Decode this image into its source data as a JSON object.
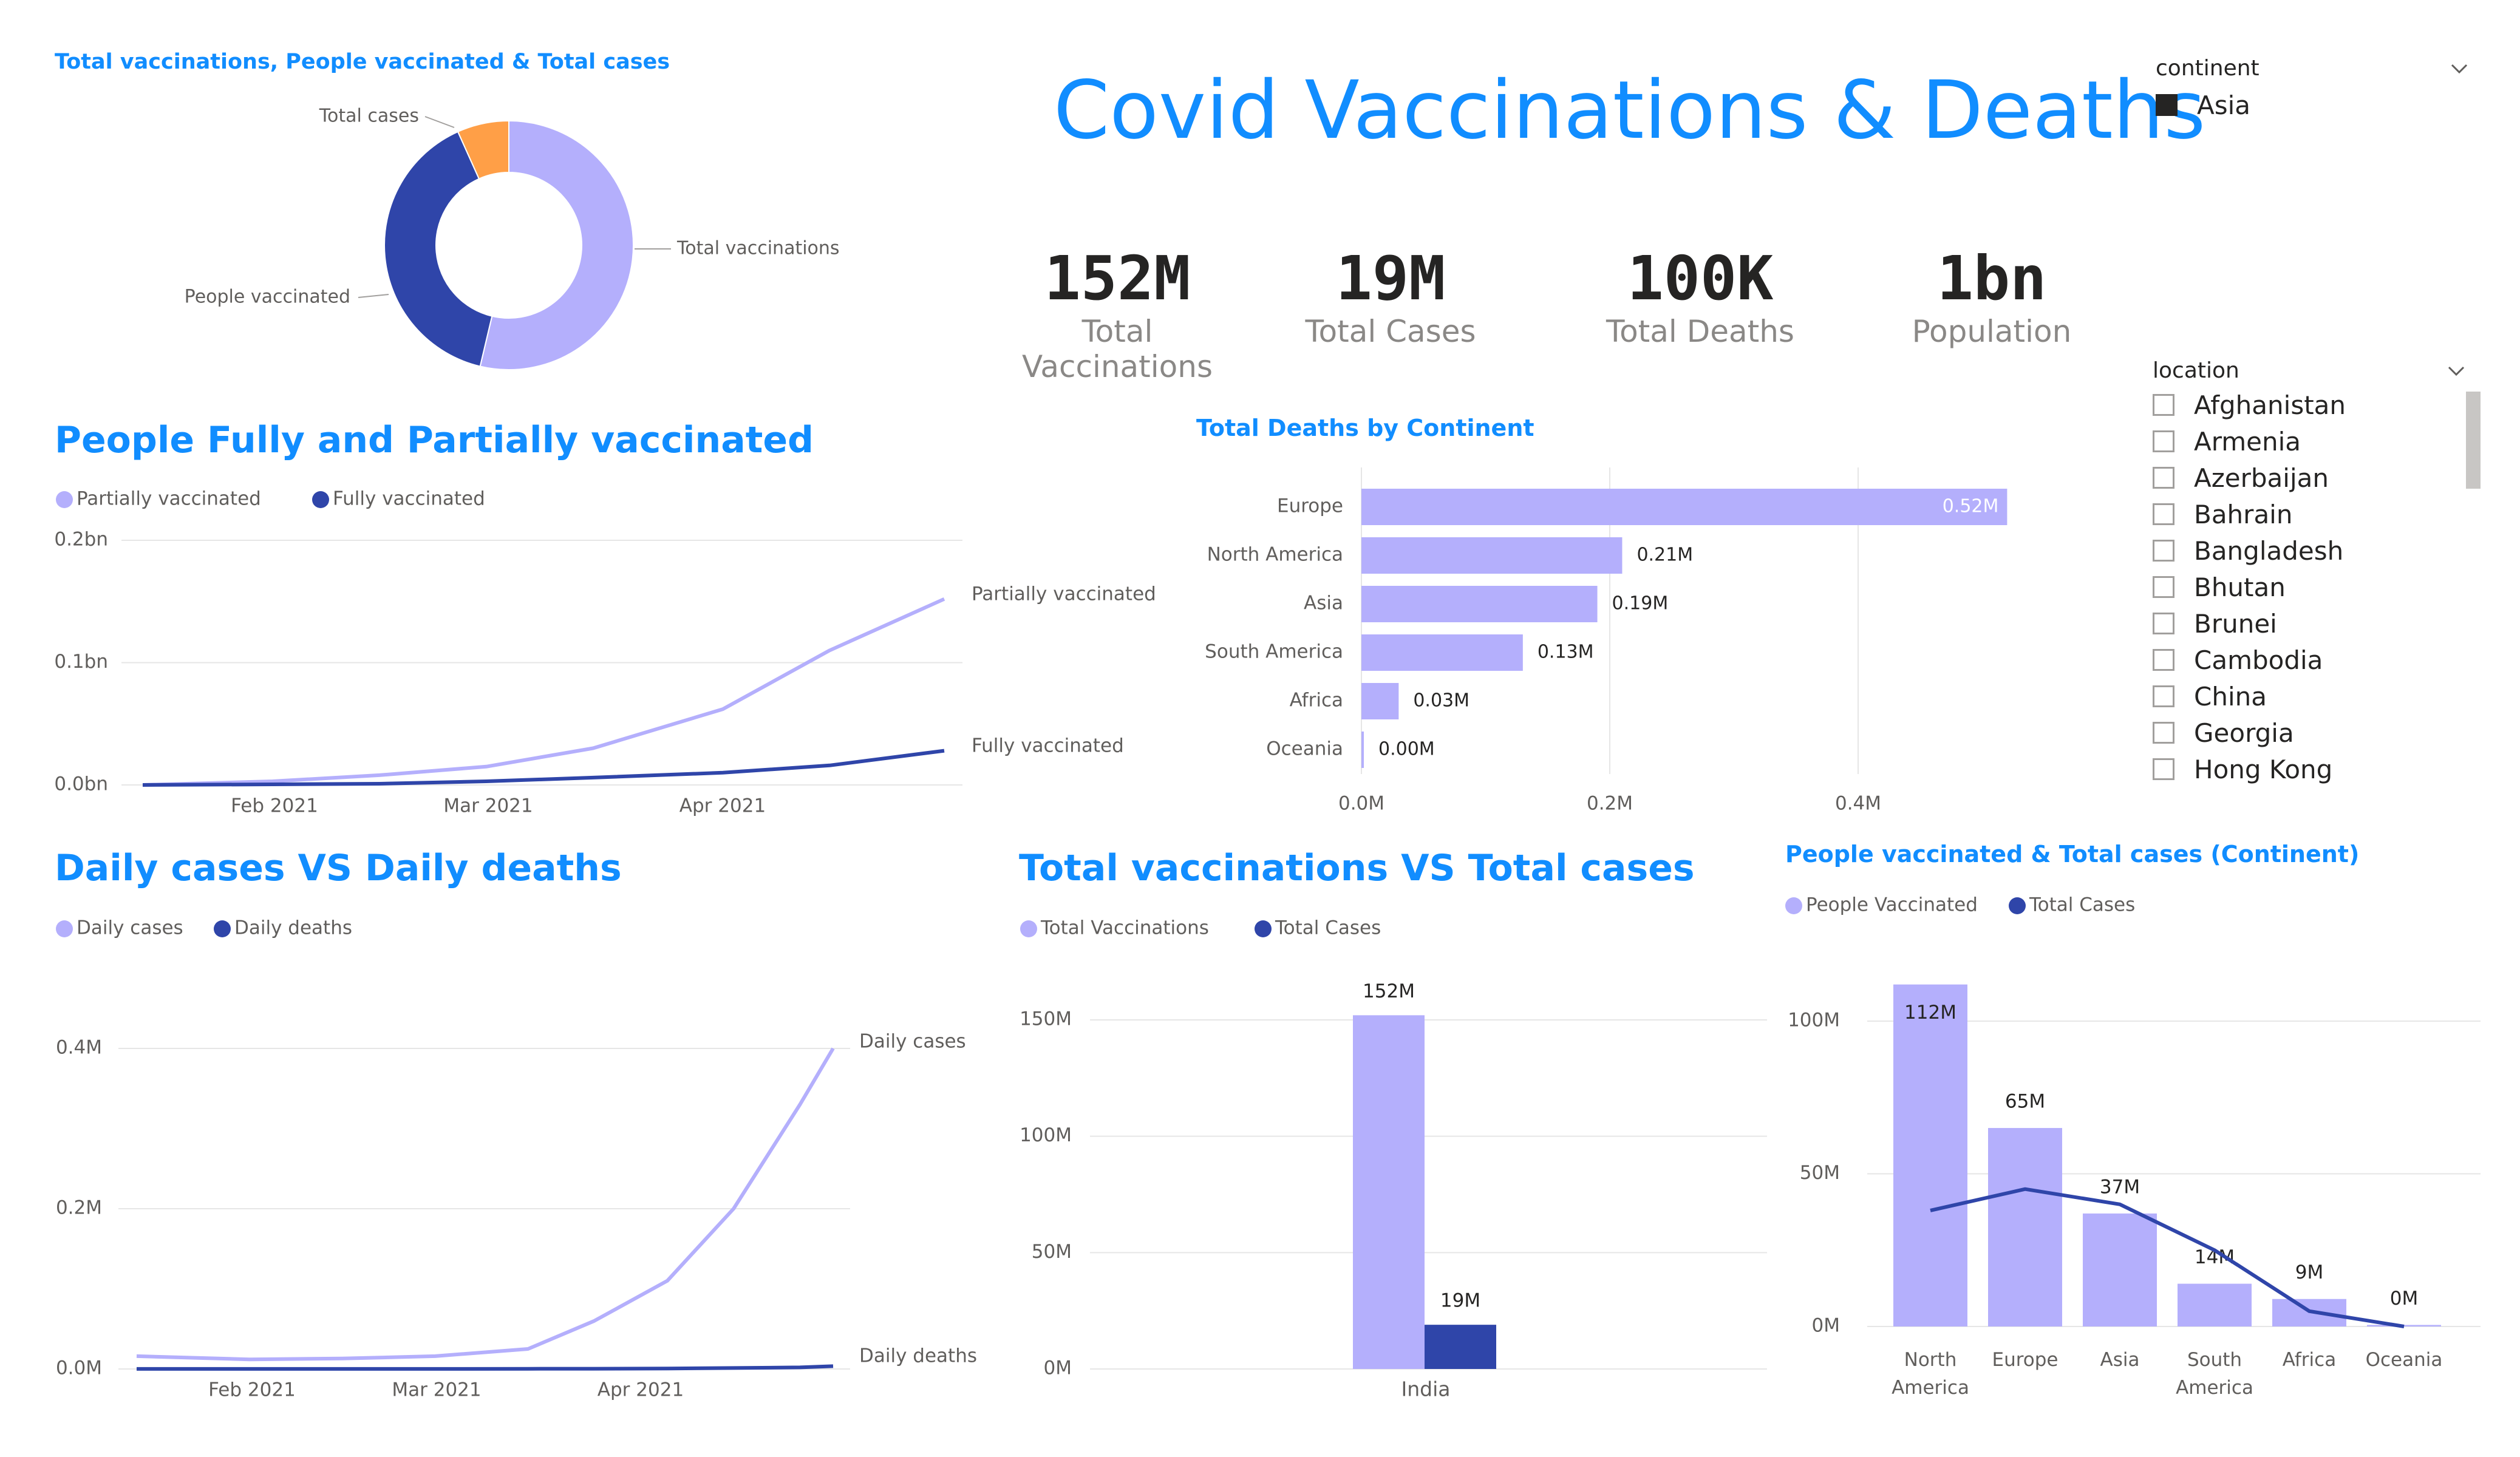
{
  "dashboard": {
    "title": "Covid Vaccinations & Deaths"
  },
  "kpis": [
    {
      "value": "152M",
      "label": "Total Vaccinations"
    },
    {
      "value": "19M",
      "label": "Total Cases"
    },
    {
      "value": "100K",
      "label": "Total Deaths"
    },
    {
      "value": "1bn",
      "label": "Population"
    }
  ],
  "slicers": {
    "continent": {
      "label": "continent",
      "selected": "Asia"
    },
    "location": {
      "label": "location",
      "items": [
        "Afghanistan",
        "Armenia",
        "Azerbaijan",
        "Bahrain",
        "Bangladesh",
        "Bhutan",
        "Brunei",
        "Cambodia",
        "China",
        "Georgia",
        "Hong Kong"
      ]
    }
  },
  "colors": {
    "accent": "#118DFF",
    "light_purple": "#B4AFFC",
    "dark_blue": "#2F45A9",
    "orange": "#FF9F47",
    "grid": "#e6e6e6",
    "text_muted": "#605e5c"
  },
  "icons": {
    "continent_dropdown": "chevron-down-icon",
    "location_dropdown": "chevron-down-icon"
  },
  "chart_data": [
    {
      "id": "donut",
      "type": "pie",
      "title": "Total vaccinations, People vaccinated & Total cases",
      "labels": [
        "Total vaccinations",
        "People vaccinated",
        "Total cases"
      ],
      "values": [
        152,
        112,
        19
      ],
      "colors": [
        "#B4AFFC",
        "#2F45A9",
        "#FF9F47"
      ]
    },
    {
      "id": "vacc_line",
      "type": "line",
      "title": "People Fully and Partially vaccinated",
      "legend": [
        "Partially vaccinated",
        "Fully vaccinated"
      ],
      "x_ticks": [
        "Feb 2021",
        "Mar 2021",
        "Apr 2021"
      ],
      "x": [
        "2021-01-15",
        "2021-02-01",
        "2021-02-15",
        "2021-03-01",
        "2021-03-15",
        "2021-04-01",
        "2021-04-15",
        "2021-04-30"
      ],
      "y_ticks": [
        "0.0bn",
        "0.1bn",
        "0.2bn"
      ],
      "ylim": [
        0,
        0.2
      ],
      "series": [
        {
          "name": "Partially vaccinated",
          "color": "#B4AFFC",
          "values": [
            0.0,
            0.003,
            0.008,
            0.015,
            0.03,
            0.062,
            0.11,
            0.152
          ]
        },
        {
          "name": "Fully vaccinated",
          "color": "#2F45A9",
          "values": [
            0.0,
            0.0005,
            0.001,
            0.003,
            0.006,
            0.01,
            0.016,
            0.028
          ]
        }
      ]
    },
    {
      "id": "deaths_bar",
      "type": "bar",
      "title": "Total Deaths by Continent",
      "categories": [
        "Europe",
        "North America",
        "Asia",
        "South America",
        "Africa",
        "Oceania"
      ],
      "values": [
        0.52,
        0.21,
        0.19,
        0.13,
        0.03,
        0.0
      ],
      "data_labels": [
        "0.52M",
        "0.21M",
        "0.19M",
        "0.13M",
        "0.03M",
        "0.00M"
      ],
      "x_ticks": [
        "0.0M",
        "0.2M",
        "0.4M"
      ],
      "xlim": [
        0,
        0.6
      ]
    },
    {
      "id": "daily_line",
      "type": "line",
      "title": "Daily cases VS Daily deaths",
      "legend": [
        "Daily cases",
        "Daily deaths"
      ],
      "x_ticks": [
        "Feb 2021",
        "Mar 2021",
        "Apr 2021"
      ],
      "x": [
        "2021-01-15",
        "2021-02-01",
        "2021-02-15",
        "2021-03-01",
        "2021-03-15",
        "2021-03-25",
        "2021-04-05",
        "2021-04-15",
        "2021-04-25",
        "2021-04-30"
      ],
      "y_ticks": [
        "0.0M",
        "0.2M",
        "0.4M"
      ],
      "ylim": [
        0,
        0.4
      ],
      "series": [
        {
          "name": "Daily cases",
          "color": "#B4AFFC",
          "values": [
            0.016,
            0.012,
            0.013,
            0.016,
            0.025,
            0.06,
            0.11,
            0.2,
            0.33,
            0.4
          ]
        },
        {
          "name": "Daily deaths",
          "color": "#2F45A9",
          "values": [
            0.0001,
            0.0001,
            0.0001,
            0.0001,
            0.0002,
            0.0003,
            0.0006,
            0.0012,
            0.002,
            0.0035
          ]
        }
      ]
    },
    {
      "id": "vacc_vs_cases",
      "type": "bar",
      "title": "Total vaccinations VS Total cases",
      "legend": [
        "Total Vaccinations",
        "Total Cases"
      ],
      "categories": [
        "India"
      ],
      "series": [
        {
          "name": "Total Vaccinations",
          "color": "#B4AFFC",
          "values": [
            152
          ],
          "data_labels": [
            "152M"
          ]
        },
        {
          "name": "Total Cases",
          "color": "#2F45A9",
          "values": [
            19
          ],
          "data_labels": [
            "19M"
          ]
        }
      ],
      "y_ticks": [
        "0M",
        "50M",
        "100M",
        "150M"
      ],
      "ylim": [
        0,
        165
      ]
    },
    {
      "id": "combo",
      "type": "bar",
      "title": "People vaccinated & Total cases (Continent)",
      "legend": [
        "People Vaccinated",
        "Total Cases"
      ],
      "categories": [
        "North America",
        "Europe",
        "Asia",
        "South America",
        "Africa",
        "Oceania"
      ],
      "series": [
        {
          "name": "People Vaccinated",
          "color": "#B4AFFC",
          "values": [
            112,
            65,
            37,
            14,
            9,
            0.5
          ],
          "data_labels": [
            "112M",
            "65M",
            "37M",
            "14M",
            "9M",
            "0M"
          ]
        },
        {
          "name": "Total Cases",
          "color": "#2F45A9",
          "values": [
            38,
            45,
            40,
            25,
            5,
            0
          ]
        }
      ],
      "y_ticks": [
        "0M",
        "50M",
        "100M"
      ],
      "ylim": [
        0,
        115
      ]
    }
  ]
}
